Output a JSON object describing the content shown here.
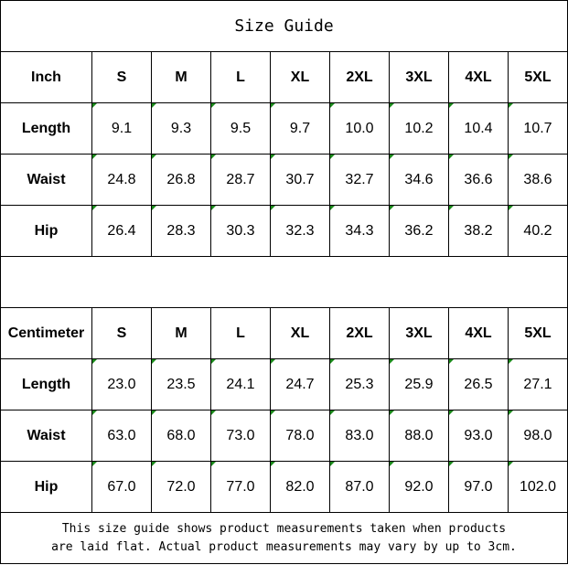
{
  "title": "Size Guide",
  "sizes": [
    "S",
    "M",
    "L",
    "XL",
    "2XL",
    "3XL",
    "4XL",
    "5XL"
  ],
  "inch": {
    "unit_label": "Inch",
    "rows": [
      {
        "label": "Length",
        "values": [
          "9.1",
          "9.3",
          "9.5",
          "9.7",
          "10.0",
          "10.2",
          "10.4",
          "10.7"
        ]
      },
      {
        "label": "Waist",
        "values": [
          "24.8",
          "26.8",
          "28.7",
          "30.7",
          "32.7",
          "34.6",
          "36.6",
          "38.6"
        ]
      },
      {
        "label": "Hip",
        "values": [
          "26.4",
          "28.3",
          "30.3",
          "32.3",
          "34.3",
          "36.2",
          "38.2",
          "40.2"
        ]
      }
    ]
  },
  "centimeter": {
    "unit_label": "Centimeter",
    "rows": [
      {
        "label": "Length",
        "values": [
          "23.0",
          "23.5",
          "24.1",
          "24.7",
          "25.3",
          "25.9",
          "26.5",
          "27.1"
        ]
      },
      {
        "label": "Waist",
        "values": [
          "63.0",
          "68.0",
          "73.0",
          "78.0",
          "83.0",
          "88.0",
          "93.0",
          "98.0"
        ]
      },
      {
        "label": "Hip",
        "values": [
          "67.0",
          "72.0",
          "77.0",
          "82.0",
          "87.0",
          "92.0",
          "97.0",
          "102.0"
        ]
      }
    ]
  },
  "note": {
    "line1": "This size guide shows product measurements taken when products",
    "line2": "are laid flat. Actual product measurements may vary by up to 3cm."
  },
  "colors": {
    "text_marker": "#1a8a1a"
  }
}
